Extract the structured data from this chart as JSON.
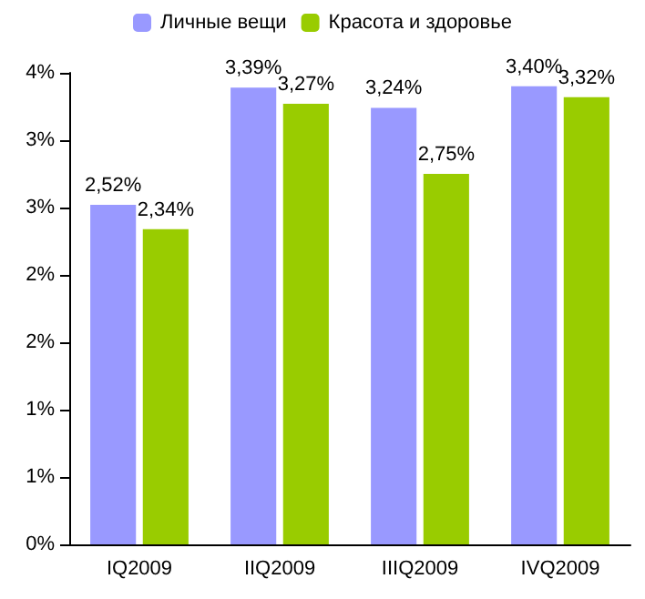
{
  "chart_data": {
    "type": "bar",
    "categories": [
      "IQ2009",
      "IIQ2009",
      "IIIQ2009",
      "IVQ2009"
    ],
    "series": [
      {
        "name": "Личные вещи",
        "color": "#9999ff",
        "values": [
          2.52,
          3.39,
          3.24,
          3.4
        ],
        "value_labels": [
          "2,52%",
          "3,39%",
          "3,24%",
          "3,40%"
        ]
      },
      {
        "name": "Красота и здоровье",
        "color": "#99cc00",
        "values": [
          2.34,
          3.27,
          2.75,
          3.32
        ],
        "value_labels": [
          "2,34%",
          "3,27%",
          "2,75%",
          "3,32%"
        ]
      }
    ],
    "ylim": [
      0,
      3.5
    ],
    "yticks": [
      {
        "value": 0,
        "label": "0%"
      },
      {
        "value": 0.5,
        "label": "1%"
      },
      {
        "value": 1,
        "label": "1%"
      },
      {
        "value": 1.5,
        "label": "2%"
      },
      {
        "value": 2,
        "label": "2%"
      },
      {
        "value": 2.5,
        "label": "3%"
      },
      {
        "value": 3,
        "label": "3%"
      },
      {
        "value": 3.5,
        "label": "4%"
      }
    ],
    "grid": false,
    "legend": "top"
  }
}
